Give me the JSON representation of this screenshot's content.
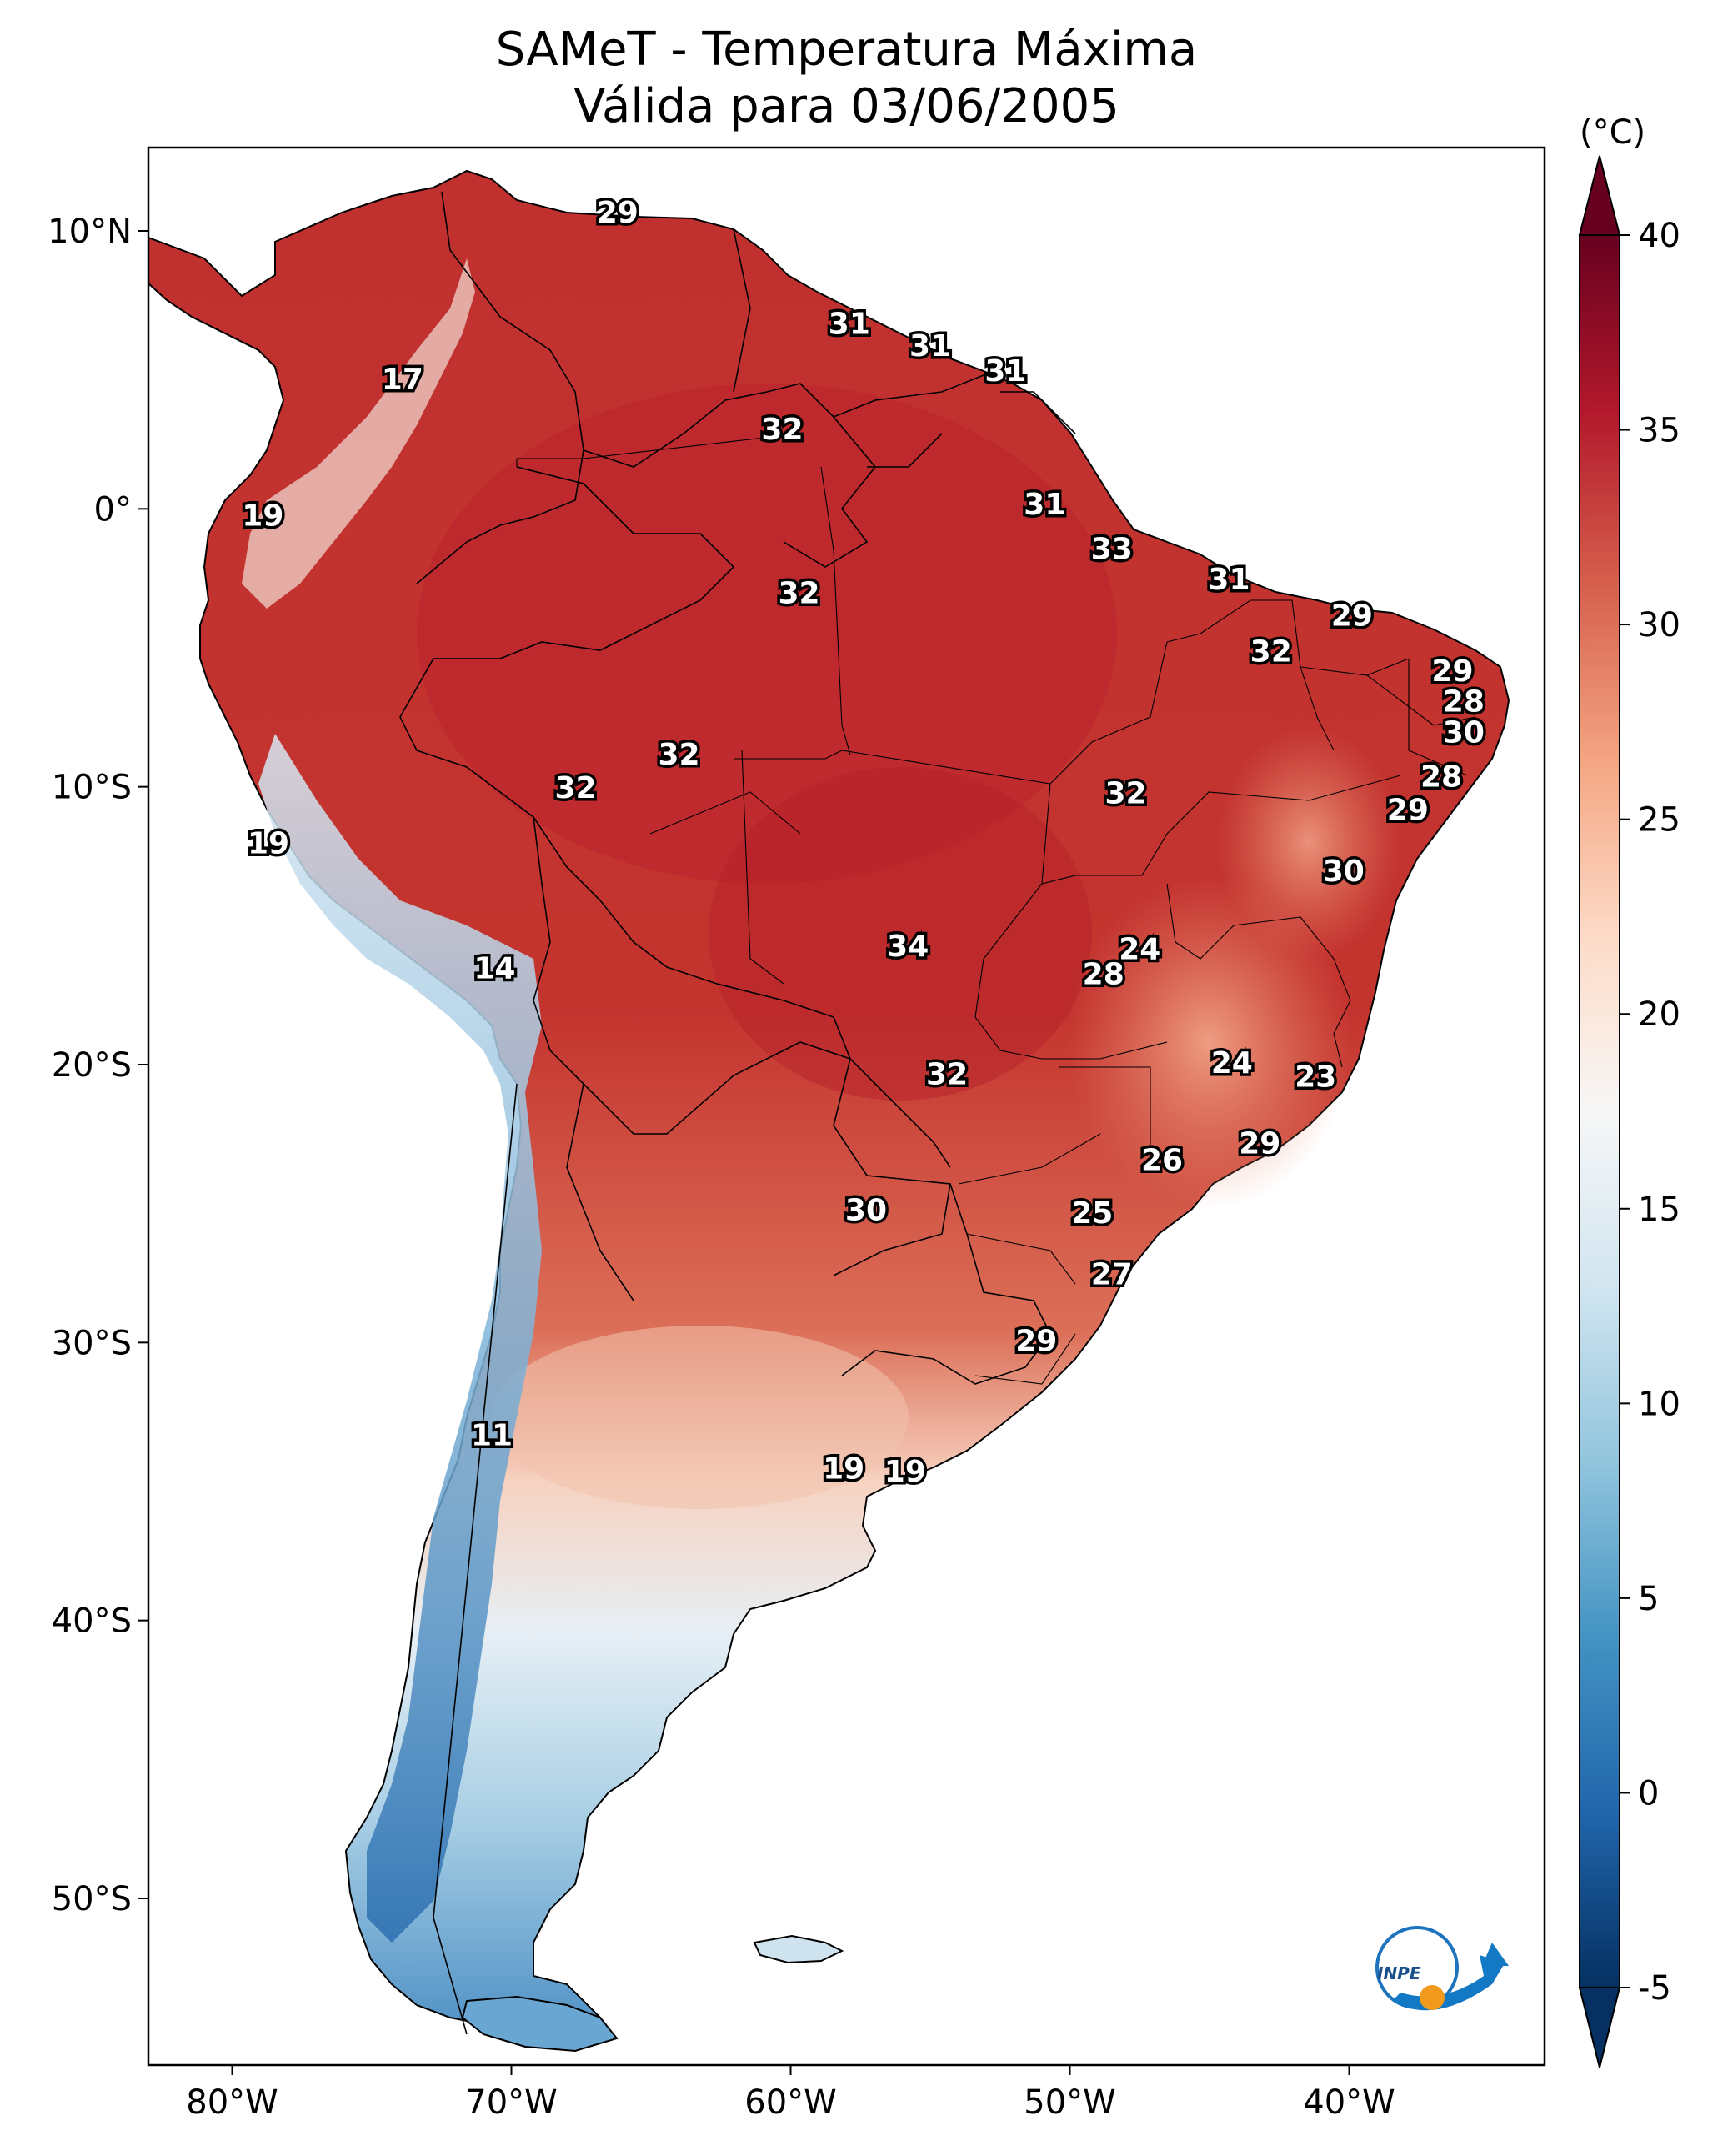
{
  "title": {
    "line1": "SAMeT - Temperatura Máxima",
    "line2": "Válida para 03/06/2005"
  },
  "colorbar": {
    "unit": "(°C)",
    "ticks": [
      "40",
      "35",
      "30",
      "25",
      "20",
      "15",
      "10",
      "5",
      "0",
      "-5"
    ],
    "tick_values": [
      40,
      35,
      30,
      25,
      20,
      15,
      10,
      5,
      0,
      -5
    ],
    "vmin": -5,
    "vmax": 40,
    "colors": [
      "#053061",
      "#2166ac",
      "#4393c3",
      "#92c5de",
      "#d1e5f0",
      "#f7f7f7",
      "#fddbc7",
      "#f4a582",
      "#d6604d",
      "#b2182b",
      "#67001f"
    ]
  },
  "map": {
    "extent": {
      "lon_min": -83,
      "lon_max": -33,
      "lat_min": -56,
      "lat_max": 13
    },
    "x_ticks": [
      {
        "lon": -80,
        "label": "80°W"
      },
      {
        "lon": -70,
        "label": "70°W"
      },
      {
        "lon": -60,
        "label": "60°W"
      },
      {
        "lon": -50,
        "label": "50°W"
      },
      {
        "lon": -40,
        "label": "40°W"
      }
    ],
    "y_ticks": [
      {
        "lat": 10,
        "label": "10°N"
      },
      {
        "lat": 0,
        "label": "0°"
      },
      {
        "lat": -10,
        "label": "10°S"
      },
      {
        "lat": -20,
        "label": "20°S"
      },
      {
        "lat": -30,
        "label": "30°S"
      },
      {
        "lat": -40,
        "label": "40°S"
      },
      {
        "lat": -50,
        "label": "50°S"
      }
    ],
    "temperature_labels": [
      {
        "lon": -66.2,
        "lat": 10.6,
        "value": "29"
      },
      {
        "lon": -57.9,
        "lat": 6.6,
        "value": "31"
      },
      {
        "lon": -55.0,
        "lat": 5.8,
        "value": "31"
      },
      {
        "lon": -52.3,
        "lat": 4.9,
        "value": "31"
      },
      {
        "lon": -73.9,
        "lat": 4.6,
        "value": "17"
      },
      {
        "lon": -60.3,
        "lat": 2.8,
        "value": "32"
      },
      {
        "lon": -50.9,
        "lat": 0.1,
        "value": "31"
      },
      {
        "lon": -78.9,
        "lat": -0.3,
        "value": "19"
      },
      {
        "lon": -48.5,
        "lat": -1.5,
        "value": "33"
      },
      {
        "lon": -44.3,
        "lat": -2.6,
        "value": "31"
      },
      {
        "lon": -59.7,
        "lat": -3.1,
        "value": "32"
      },
      {
        "lon": -39.9,
        "lat": -3.9,
        "value": "29"
      },
      {
        "lon": -42.8,
        "lat": -5.2,
        "value": "32"
      },
      {
        "lon": -36.3,
        "lat": -5.9,
        "value": "29"
      },
      {
        "lon": -35.9,
        "lat": -7.0,
        "value": "28"
      },
      {
        "lon": -35.9,
        "lat": -8.1,
        "value": "30"
      },
      {
        "lon": -64.0,
        "lat": -8.9,
        "value": "32"
      },
      {
        "lon": -67.7,
        "lat": -10.1,
        "value": "32"
      },
      {
        "lon": -48.0,
        "lat": -10.3,
        "value": "32"
      },
      {
        "lon": -36.7,
        "lat": -9.7,
        "value": "28"
      },
      {
        "lon": -37.9,
        "lat": -10.9,
        "value": "29"
      },
      {
        "lon": -78.7,
        "lat": -12.1,
        "value": "19"
      },
      {
        "lon": -40.2,
        "lat": -13.1,
        "value": "30"
      },
      {
        "lon": -47.5,
        "lat": -15.9,
        "value": "24"
      },
      {
        "lon": -55.8,
        "lat": -15.8,
        "value": "34"
      },
      {
        "lon": -48.8,
        "lat": -16.8,
        "value": "28"
      },
      {
        "lon": -70.6,
        "lat": -16.6,
        "value": "14"
      },
      {
        "lon": -44.2,
        "lat": -20.0,
        "value": "24"
      },
      {
        "lon": -41.2,
        "lat": -20.5,
        "value": "23"
      },
      {
        "lon": -54.4,
        "lat": -20.4,
        "value": "32"
      },
      {
        "lon": -43.2,
        "lat": -22.9,
        "value": "29"
      },
      {
        "lon": -46.7,
        "lat": -23.5,
        "value": "26"
      },
      {
        "lon": -49.2,
        "lat": -25.4,
        "value": "25"
      },
      {
        "lon": -57.3,
        "lat": -25.3,
        "value": "30"
      },
      {
        "lon": -48.5,
        "lat": -27.6,
        "value": "27"
      },
      {
        "lon": -51.2,
        "lat": -30.0,
        "value": "29"
      },
      {
        "lon": -70.7,
        "lat": -33.4,
        "value": "11"
      },
      {
        "lon": -58.1,
        "lat": -34.6,
        "value": "19"
      },
      {
        "lon": -55.9,
        "lat": -34.7,
        "value": "19"
      }
    ]
  },
  "logo": {
    "text": "INPE"
  }
}
